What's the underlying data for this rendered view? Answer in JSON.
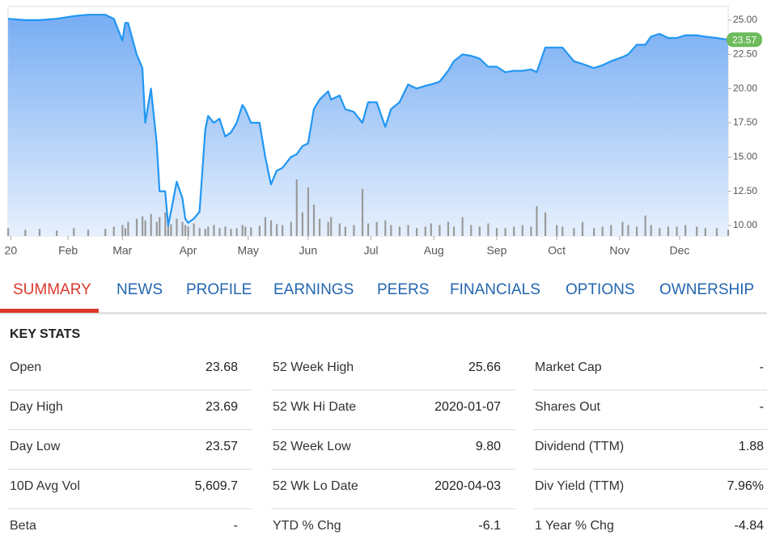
{
  "chart_data": {
    "type": "line",
    "color": "#2196f3",
    "x": [
      0,
      6,
      11,
      17,
      23,
      28,
      34,
      37,
      40,
      41,
      42,
      45,
      47,
      48,
      50,
      52,
      53,
      55,
      56,
      57,
      59,
      61,
      62,
      63,
      65,
      67,
      69,
      70,
      72,
      74,
      76,
      78,
      80,
      82,
      83,
      85,
      88,
      90,
      92,
      94,
      96,
      99,
      101,
      103,
      105,
      107,
      109,
      112,
      113,
      116,
      118,
      121,
      124,
      126,
      129,
      132,
      134,
      137,
      140,
      143,
      146,
      148,
      151,
      154,
      156,
      159,
      162,
      165,
      168,
      171,
      174,
      177,
      180,
      183,
      185,
      188,
      192,
      194,
      198,
      201,
      205,
      208,
      211,
      215,
      217,
      220,
      223,
      225,
      228,
      231,
      234,
      237,
      241,
      244,
      248,
      252
    ],
    "values": [
      25.1,
      25.0,
      25.0,
      25.1,
      25.3,
      25.4,
      25.4,
      25.1,
      23.5,
      24.8,
      24.8,
      22.5,
      21.5,
      17.5,
      20.0,
      16.0,
      12.5,
      12.5,
      10.0,
      11.0,
      13.2,
      12.0,
      10.5,
      10.2,
      10.5,
      11.0,
      17.0,
      18.0,
      17.5,
      17.8,
      16.5,
      16.8,
      17.5,
      18.8,
      18.5,
      17.5,
      17.5,
      15.0,
      13.0,
      14.0,
      14.2,
      15.0,
      15.2,
      15.8,
      16.0,
      18.5,
      19.2,
      19.8,
      19.2,
      19.5,
      18.5,
      18.3,
      17.5,
      19.0,
      19.0,
      17.2,
      18.5,
      19.0,
      20.3,
      20.0,
      20.2,
      20.3,
      20.5,
      21.3,
      22.0,
      22.5,
      22.4,
      22.2,
      21.6,
      21.6,
      21.2,
      21.3,
      21.3,
      21.4,
      21.2,
      23.0,
      23.0,
      23.0,
      22.0,
      21.8,
      21.5,
      21.7,
      22.0,
      22.3,
      22.5,
      23.2,
      23.2,
      23.8,
      24.0,
      23.7,
      23.7,
      23.9,
      23.9,
      23.8,
      23.7,
      23.57
    ],
    "volume": [
      10,
      8,
      9,
      7,
      10,
      8,
      9,
      12,
      14,
      10,
      18,
      22,
      25,
      20,
      28,
      18,
      24,
      30,
      20,
      15,
      22,
      18,
      14,
      12,
      16,
      10,
      9,
      12,
      14,
      10,
      12,
      9,
      10,
      14,
      12,
      11,
      13,
      24,
      20,
      15,
      14,
      18,
      72,
      30,
      62,
      40,
      22,
      18,
      24,
      16,
      12,
      14,
      60,
      16,
      18,
      20,
      14,
      12,
      14,
      10,
      12,
      16,
      14,
      18,
      12,
      24,
      14,
      12,
      16,
      10,
      10,
      12,
      14,
      12,
      38,
      30,
      14,
      12,
      10,
      18,
      10,
      12,
      14,
      18,
      14,
      12,
      26,
      14,
      10,
      12,
      12,
      14,
      12,
      10,
      10,
      8
    ],
    "last_price": 23.57,
    "xlim": [
      0,
      252
    ],
    "xticks": [
      {
        "value": 1,
        "label": "20"
      },
      {
        "value": 21,
        "label": "Feb"
      },
      {
        "value": 40,
        "label": "Mar"
      },
      {
        "value": 63,
        "label": "Apr"
      },
      {
        "value": 84,
        "label": "May"
      },
      {
        "value": 105,
        "label": "Jun"
      },
      {
        "value": 127,
        "label": "Jul"
      },
      {
        "value": 149,
        "label": "Aug"
      },
      {
        "value": 171,
        "label": "Sep"
      },
      {
        "value": 192,
        "label": "Oct"
      },
      {
        "value": 214,
        "label": "Nov"
      },
      {
        "value": 235,
        "label": "Dec"
      }
    ],
    "ylim": [
      9.23,
      26.0
    ],
    "yticks": [
      {
        "value": 10,
        "label": "10.00"
      },
      {
        "value": 12.5,
        "label": "12.50"
      },
      {
        "value": 15,
        "label": "15.00"
      },
      {
        "value": 17.5,
        "label": "17.50"
      },
      {
        "value": 20,
        "label": "20.00"
      },
      {
        "value": 22.5,
        "label": "22.50"
      },
      {
        "value": 25,
        "label": "25.00"
      }
    ]
  },
  "tabs": [
    "SUMMARY",
    "NEWS",
    "PROFILE",
    "EARNINGS",
    "PEERS",
    "FINANCIALS",
    "OPTIONS",
    "OWNERSHIP"
  ],
  "active_tab": 0,
  "key_stats": {
    "title": "KEY STATS",
    "columns": [
      [
        [
          "Open",
          "23.68"
        ],
        [
          "Day High",
          "23.69"
        ],
        [
          "Day Low",
          "23.57"
        ],
        [
          "10D Avg Vol",
          "5,609.7"
        ],
        [
          "Beta",
          "-"
        ]
      ],
      [
        [
          "52 Week High",
          "25.66"
        ],
        [
          "52 Wk Hi Date",
          "2020-01-07"
        ],
        [
          "52 Week Low",
          "9.80"
        ],
        [
          "52 Wk Lo Date",
          "2020-04-03"
        ],
        [
          "YTD % Chg",
          "-6.1"
        ]
      ],
      [
        [
          "Market Cap",
          "-"
        ],
        [
          "Shares Out",
          "-"
        ],
        [
          "Dividend (TTM)",
          "1.88"
        ],
        [
          "Div Yield (TTM)",
          "7.96%"
        ],
        [
          "1 Year % Chg",
          "-4.84"
        ]
      ]
    ]
  }
}
